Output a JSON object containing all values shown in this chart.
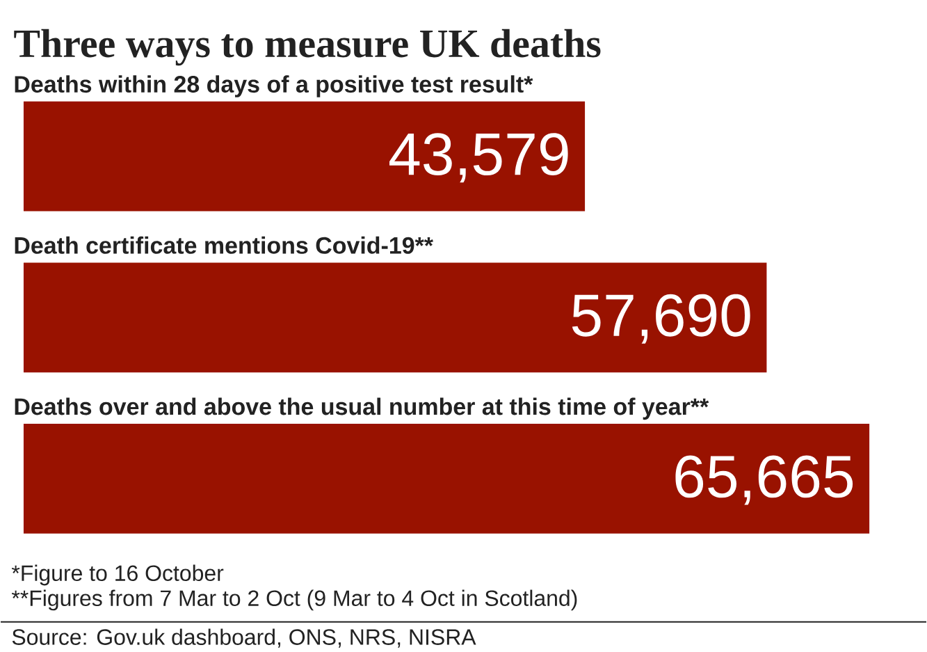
{
  "chart_data": {
    "type": "bar",
    "orientation": "horizontal",
    "title": "Three ways to measure UK deaths",
    "categories": [
      "Deaths within 28 days of a positive test result*",
      "Death certificate mentions Covid-19**",
      "Deaths over and above the usual number at this time of year**"
    ],
    "values": [
      43579,
      57690,
      65665
    ],
    "value_labels": [
      "43,579",
      "57,690",
      "65,665"
    ],
    "color": "#991200",
    "annotations": [
      "*Figure to 16 October",
      "**Figures from 7 Mar to 2 Oct (9 Mar to 4 Oct in Scotland)",
      "Source: Gov.uk dashboard, ONS, NRS, NISRA"
    ]
  }
}
